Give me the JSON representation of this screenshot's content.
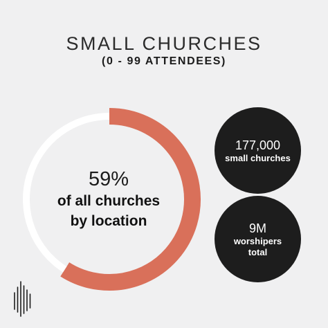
{
  "header": {
    "title": "SMALL CHURCHES",
    "subtitle": "(0 - 99 ATTENDEES)"
  },
  "donut": {
    "percent_label": "59%",
    "line1": "of all churches",
    "line2": "by location"
  },
  "stats": [
    {
      "value": "177,000",
      "label_lines": [
        "small churches"
      ]
    },
    {
      "value": "9M",
      "label_lines": [
        "worshipers",
        "total"
      ]
    }
  ],
  "chart_data": {
    "type": "pie",
    "title": "SMALL CHURCHES",
    "subtitle": "(0 - 99 ATTENDEES)",
    "slices": [
      {
        "label": "",
        "value": 59,
        "color": "#d9705a"
      },
      {
        "label": "",
        "value": 41,
        "color": "#ffffff"
      }
    ],
    "style": "donut"
  },
  "colors": {
    "accent": "#d9705a",
    "track": "#ffffff",
    "background": "#f0f0f1",
    "stat_circle": "#1d1d1d"
  },
  "logo": {
    "icon": "barcode-logo-icon"
  }
}
